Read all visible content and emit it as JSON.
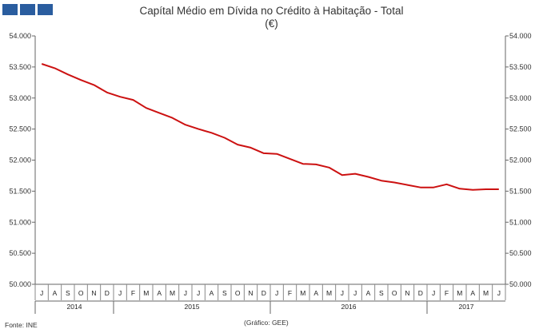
{
  "header": {
    "title_line1": "Capítal Médio em Dívida no Crédito à Habitação - Total",
    "title_line2": "(€)"
  },
  "footer": {
    "source": "Fonte: INE",
    "credit": "(Gráfico: GEE)"
  },
  "logo_color": "#2a5d9f",
  "chart_data": {
    "type": "line",
    "title": "Capítal Médio em Dívida no Crédito à Habitação - Total",
    "subtitle": "(€)",
    "color": "#cc1111",
    "ylim": [
      50000,
      54000
    ],
    "yticks": [
      "50.000",
      "50.500",
      "51.000",
      "51.500",
      "52.000",
      "52.500",
      "53.000",
      "53.500",
      "54.000"
    ],
    "ytick_values": [
      50000,
      50500,
      51000,
      51500,
      52000,
      52500,
      53000,
      53500,
      54000
    ],
    "y_axis_both_sides": true,
    "grid": false,
    "months": [
      "J",
      "A",
      "S",
      "O",
      "N",
      "D",
      "J",
      "F",
      "M",
      "A",
      "M",
      "J",
      "J",
      "A",
      "S",
      "O",
      "N",
      "D",
      "J",
      "F",
      "M",
      "A",
      "M",
      "J",
      "J",
      "A",
      "S",
      "O",
      "N",
      "D",
      "J",
      "F",
      "M",
      "A",
      "M",
      "J"
    ],
    "years": [
      {
        "label": "2014",
        "start": 0,
        "end": 6
      },
      {
        "label": "2015",
        "start": 6,
        "end": 18
      },
      {
        "label": "2016",
        "start": 18,
        "end": 30
      },
      {
        "label": "2017",
        "start": 30,
        "end": 36
      }
    ],
    "values": [
      53550,
      53480,
      53380,
      53290,
      53210,
      53090,
      53020,
      52970,
      52840,
      52760,
      52680,
      52570,
      52500,
      52440,
      52360,
      52250,
      52200,
      52110,
      52100,
      52020,
      51940,
      51930,
      51880,
      51760,
      51780,
      51730,
      51670,
      51640,
      51600,
      51560,
      51560,
      51610,
      51540,
      51520,
      51530,
      51530
    ]
  }
}
